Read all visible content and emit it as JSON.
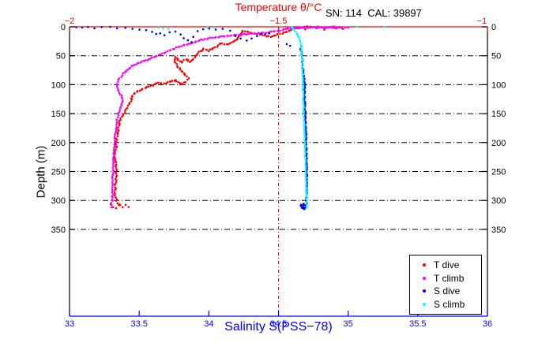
{
  "chart_data": {
    "type": "scatter",
    "title": "Temperature θ/°C",
    "annotation": "SN: 114  CAL: 39897",
    "axes": {
      "top_x": {
        "label": "Temperature θ/°C",
        "range": [
          -2,
          -1
        ],
        "ticks": [
          -2,
          -1.5,
          -1
        ],
        "color": "#ff0000"
      },
      "bottom_x": {
        "label": "Salinity S(PSS−78)",
        "range": [
          33,
          36
        ],
        "ticks": [
          33,
          33.5,
          34,
          34.5,
          35,
          35.5,
          36
        ],
        "color": "#0000ff"
      },
      "y": {
        "label": "Depth (m)",
        "range": [
          0,
          500
        ],
        "ticks": [
          0,
          50,
          100,
          150,
          200,
          250,
          300,
          350
        ],
        "direction": "down",
        "grid": "dash-dot",
        "grid_color": "#000000"
      }
    },
    "reference_line": {
      "axis": "top_x",
      "value": -1.5,
      "color": "#ff0000",
      "style": "dash-dot"
    },
    "legend": {
      "position": "bottom-right",
      "items": [
        "T dive",
        "T climb",
        "S dive",
        "S climb"
      ]
    },
    "series": [
      {
        "name": "T dive",
        "color": "#ff0000",
        "x_axis": "top",
        "marker": "dot",
        "profile": [
          [
            -1.36,
            2
          ],
          [
            -1.4,
            1
          ],
          [
            -1.43,
            0
          ],
          [
            -1.46,
            3
          ],
          [
            -1.5,
            13
          ],
          [
            -1.52,
            17
          ],
          [
            -1.555,
            12
          ],
          [
            -1.585,
            7
          ],
          [
            -1.598,
            22
          ],
          [
            -1.612,
            27
          ],
          [
            -1.625,
            31
          ],
          [
            -1.638,
            28
          ],
          [
            -1.652,
            36
          ],
          [
            -1.665,
            41
          ],
          [
            -1.678,
            38
          ],
          [
            -1.692,
            44
          ],
          [
            -1.703,
            55
          ],
          [
            -1.712,
            60
          ],
          [
            -1.722,
            56
          ],
          [
            -1.733,
            62
          ],
          [
            -1.746,
            52
          ],
          [
            -1.75,
            60
          ],
          [
            -1.742,
            68
          ],
          [
            -1.732,
            76
          ],
          [
            -1.722,
            84
          ],
          [
            -1.716,
            89
          ],
          [
            -1.722,
            95
          ],
          [
            -1.734,
            99
          ],
          [
            -1.746,
            92
          ],
          [
            -1.76,
            95
          ],
          [
            -1.774,
            98
          ],
          [
            -1.788,
            96
          ],
          [
            -1.802,
            101
          ],
          [
            -1.82,
            106
          ],
          [
            -1.836,
            111
          ],
          [
            -1.847,
            116
          ],
          [
            -1.853,
            126
          ],
          [
            -1.858,
            134
          ],
          [
            -1.866,
            145
          ],
          [
            -1.873,
            153
          ],
          [
            -1.879,
            163
          ],
          [
            -1.883,
            174
          ],
          [
            -1.886,
            186
          ],
          [
            -1.888,
            198
          ],
          [
            -1.89,
            212
          ],
          [
            -1.891,
            226
          ],
          [
            -1.889,
            240
          ],
          [
            -1.888,
            254
          ],
          [
            -1.89,
            268
          ],
          [
            -1.891,
            282
          ],
          [
            -1.889,
            295
          ],
          [
            -1.886,
            304
          ],
          [
            -1.879,
            308
          ]
        ],
        "scatter": [
          [
            -1.902,
            307
          ],
          [
            -1.895,
            311
          ],
          [
            -1.888,
            314
          ],
          [
            -1.881,
            308
          ],
          [
            -1.873,
            312
          ],
          [
            -1.866,
            308
          ],
          [
            -1.859,
            311
          ],
          [
            -1.37,
            1
          ],
          [
            -1.345,
            3
          ],
          [
            -1.41,
            2
          ],
          [
            -1.435,
            4
          ],
          [
            -1.39,
            5
          ]
        ]
      },
      {
        "name": "T climb",
        "color": "#ff00ff",
        "x_axis": "top",
        "marker": "dot",
        "profile": [
          [
            -1.349,
            2
          ],
          [
            -1.37,
            0
          ],
          [
            -1.39,
            2
          ],
          [
            -1.41,
            0
          ],
          [
            -1.43,
            2
          ],
          [
            -1.45,
            1
          ],
          [
            -1.467,
            2
          ],
          [
            -1.483,
            4
          ],
          [
            -1.5,
            7
          ],
          [
            -1.52,
            9
          ],
          [
            -1.54,
            11
          ],
          [
            -1.562,
            12
          ],
          [
            -1.583,
            13
          ],
          [
            -1.6,
            14
          ],
          [
            -1.62,
            16
          ],
          [
            -1.64,
            17
          ],
          [
            -1.658,
            19
          ],
          [
            -1.675,
            21
          ],
          [
            -1.692,
            24
          ],
          [
            -1.708,
            28
          ],
          [
            -1.724,
            31
          ],
          [
            -1.74,
            35
          ],
          [
            -1.757,
            40
          ],
          [
            -1.774,
            45
          ],
          [
            -1.79,
            50
          ],
          [
            -1.806,
            55
          ],
          [
            -1.82,
            59
          ],
          [
            -1.834,
            62
          ],
          [
            -1.848,
            67
          ],
          [
            -1.86,
            73
          ],
          [
            -1.871,
            81
          ],
          [
            -1.88,
            89
          ],
          [
            -1.886,
            98
          ],
          [
            -1.887,
            103
          ],
          [
            -1.882,
            111
          ],
          [
            -1.876,
            119
          ],
          [
            -1.872,
            127
          ],
          [
            -1.875,
            134
          ],
          [
            -1.879,
            141
          ],
          [
            -1.883,
            150
          ],
          [
            -1.886,
            160
          ],
          [
            -1.888,
            170
          ],
          [
            -1.89,
            181
          ],
          [
            -1.892,
            193
          ],
          [
            -1.893,
            206
          ],
          [
            -1.894,
            219
          ],
          [
            -1.895,
            232
          ],
          [
            -1.896,
            246
          ],
          [
            -1.897,
            260
          ],
          [
            -1.897,
            274
          ],
          [
            -1.897,
            287
          ],
          [
            -1.898,
            298
          ],
          [
            -1.899,
            308
          ],
          [
            -1.9,
            312
          ]
        ],
        "scatter": [
          [
            -1.478,
            1
          ],
          [
            -1.455,
            0
          ],
          [
            -1.44,
            2
          ],
          [
            -1.425,
            1
          ],
          [
            -1.405,
            0
          ],
          [
            -1.385,
            1
          ],
          [
            -1.362,
            2
          ],
          [
            -1.352,
            0
          ],
          [
            -1.34,
            1
          ],
          [
            -1.333,
            2
          ]
        ]
      },
      {
        "name": "S dive",
        "color": "#0000ee",
        "x_axis": "bottom",
        "marker": "dot",
        "profile": [
          [
            34.66,
            35
          ],
          [
            34.668,
            52
          ],
          [
            34.674,
            68
          ],
          [
            34.683,
            84
          ],
          [
            34.69,
            100
          ],
          [
            34.686,
            115
          ],
          [
            34.69,
            132
          ],
          [
            34.693,
            152
          ],
          [
            34.695,
            172
          ],
          [
            34.697,
            192
          ],
          [
            34.699,
            212
          ],
          [
            34.701,
            232
          ],
          [
            34.702,
            252
          ],
          [
            34.702,
            272
          ],
          [
            34.701,
            290
          ],
          [
            34.7,
            308
          ]
        ],
        "scatter": [
          [
            33.05,
            0
          ],
          [
            33.09,
            1
          ],
          [
            33.13,
            0
          ],
          [
            33.18,
            2
          ],
          [
            33.23,
            1
          ],
          [
            33.29,
            0
          ],
          [
            33.34,
            2
          ],
          [
            33.4,
            1
          ],
          [
            33.45,
            3
          ],
          [
            33.5,
            5
          ],
          [
            33.55,
            6
          ],
          [
            33.59,
            9
          ],
          [
            33.62,
            13
          ],
          [
            33.65,
            11
          ],
          [
            33.68,
            14
          ],
          [
            33.72,
            10
          ],
          [
            33.76,
            8
          ],
          [
            33.8,
            13
          ],
          [
            33.82,
            19
          ],
          [
            33.85,
            23
          ],
          [
            33.875,
            26
          ],
          [
            33.89,
            18
          ],
          [
            33.92,
            7
          ],
          [
            33.96,
            4
          ],
          [
            34.0,
            3
          ],
          [
            34.05,
            5
          ],
          [
            34.1,
            4
          ],
          [
            34.15,
            6
          ],
          [
            34.19,
            16
          ],
          [
            34.23,
            20
          ],
          [
            34.27,
            23
          ],
          [
            34.31,
            20
          ],
          [
            34.345,
            16
          ],
          [
            34.375,
            12
          ],
          [
            34.405,
            13
          ],
          [
            34.43,
            11
          ],
          [
            34.56,
            30
          ],
          [
            34.585,
            33
          ],
          [
            34.665,
            307
          ],
          [
            34.672,
            311
          ],
          [
            34.678,
            306
          ],
          [
            34.684,
            312
          ],
          [
            34.69,
            308
          ],
          [
            34.678,
            314
          ],
          [
            34.67,
            313
          ],
          [
            34.686,
            315
          ],
          [
            34.692,
            311
          ],
          [
            34.66,
            310
          ],
          [
            34.695,
            313
          ],
          [
            34.674,
            309
          ]
        ]
      },
      {
        "name": "S climb",
        "color": "#00ffff",
        "x_axis": "bottom",
        "marker": "dot",
        "profile": [
          [
            34.59,
            0
          ],
          [
            34.605,
            4
          ],
          [
            34.62,
            8
          ],
          [
            34.637,
            13
          ],
          [
            34.65,
            20
          ],
          [
            34.66,
            30
          ],
          [
            34.665,
            42
          ],
          [
            34.669,
            58
          ],
          [
            34.672,
            77
          ],
          [
            34.675,
            98
          ],
          [
            34.678,
            120
          ],
          [
            34.681,
            142
          ],
          [
            34.684,
            164
          ],
          [
            34.687,
            186
          ],
          [
            34.69,
            208
          ],
          [
            34.693,
            230
          ],
          [
            34.696,
            252
          ],
          [
            34.699,
            274
          ],
          [
            34.701,
            293
          ],
          [
            34.702,
            312
          ]
        ],
        "scatter": [
          [
            33.64,
            1
          ],
          [
            33.67,
            3
          ],
          [
            33.71,
            4
          ],
          [
            33.99,
            1
          ],
          [
            34.04,
            2
          ],
          [
            35.06,
            0
          ],
          [
            35.26,
            0
          ]
        ]
      }
    ]
  }
}
